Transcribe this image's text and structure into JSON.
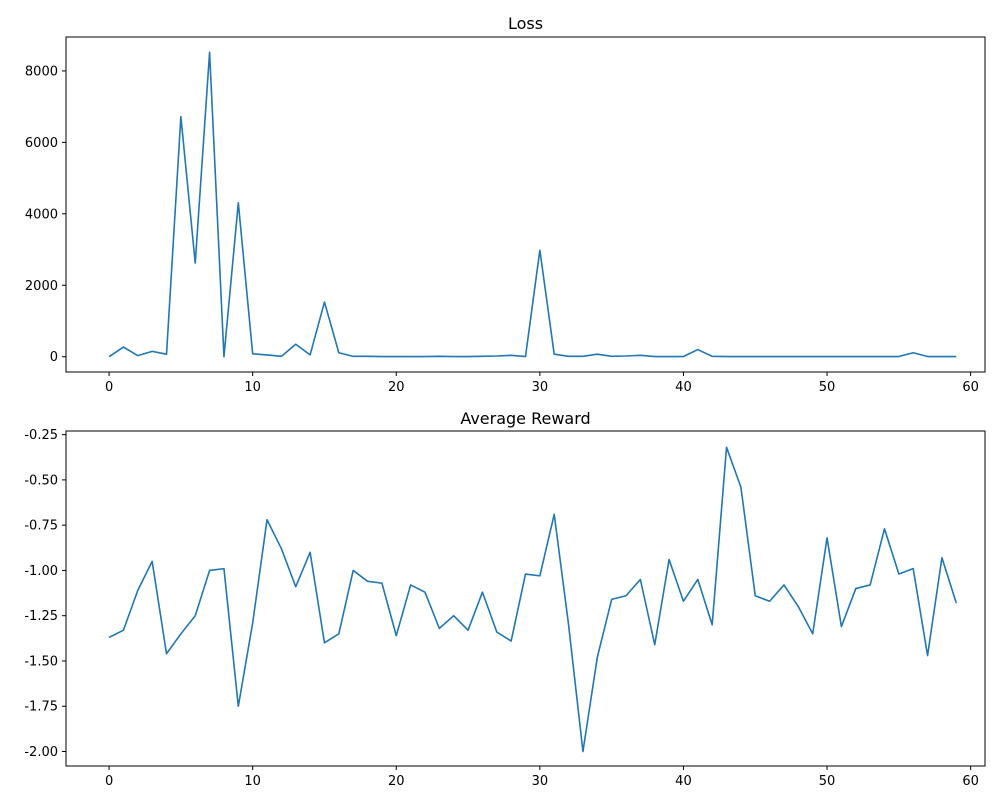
{
  "chart_data": [
    {
      "type": "line",
      "title": "Loss",
      "xlabel": "",
      "ylabel": "",
      "xlim": [
        -3,
        61
      ],
      "ylim": [
        -428,
        8950
      ],
      "xticks": [
        0,
        10,
        20,
        30,
        40,
        50,
        60
      ],
      "yticks": [
        0,
        2000,
        4000,
        6000,
        8000
      ],
      "grid": false,
      "color": "#1f77b4",
      "x": [
        0,
        1,
        2,
        3,
        4,
        5,
        6,
        7,
        8,
        9,
        10,
        11,
        12,
        13,
        14,
        15,
        16,
        17,
        18,
        19,
        20,
        21,
        22,
        23,
        24,
        25,
        26,
        27,
        28,
        29,
        30,
        31,
        32,
        33,
        34,
        35,
        36,
        37,
        38,
        39,
        40,
        41,
        42,
        43,
        44,
        45,
        46,
        47,
        48,
        49,
        50,
        51,
        52,
        53,
        54,
        55,
        56,
        57,
        58,
        59
      ],
      "y": [
        0,
        270,
        30,
        150,
        70,
        6720,
        2620,
        8520,
        0,
        4310,
        80,
        50,
        10,
        350,
        50,
        1530,
        110,
        10,
        10,
        5,
        5,
        5,
        5,
        10,
        5,
        5,
        10,
        20,
        40,
        5,
        2980,
        70,
        10,
        10,
        70,
        10,
        20,
        40,
        5,
        5,
        5,
        200,
        10,
        5,
        5,
        5,
        5,
        5,
        5,
        5,
        5,
        5,
        5,
        5,
        5,
        5,
        110,
        5,
        5,
        5
      ]
    },
    {
      "type": "line",
      "title": "Average Reward",
      "xlabel": "",
      "ylabel": "",
      "xlim": [
        -3,
        61
      ],
      "ylim": [
        -2.08,
        -0.23
      ],
      "xticks": [
        0,
        10,
        20,
        30,
        40,
        50,
        60
      ],
      "yticks": [
        -2.0,
        -1.75,
        -1.5,
        -1.25,
        -1.0,
        -0.75,
        -0.5,
        -0.25
      ],
      "grid": false,
      "color": "#1f77b4",
      "x": [
        0,
        1,
        2,
        3,
        4,
        5,
        6,
        7,
        8,
        9,
        10,
        11,
        12,
        13,
        14,
        15,
        16,
        17,
        18,
        19,
        20,
        21,
        22,
        23,
        24,
        25,
        26,
        27,
        28,
        29,
        30,
        31,
        32,
        33,
        34,
        35,
        36,
        37,
        38,
        39,
        40,
        41,
        42,
        43,
        44,
        45,
        46,
        47,
        48,
        49,
        50,
        51,
        52,
        53,
        54,
        55,
        56,
        57,
        58,
        59
      ],
      "y": [
        -1.37,
        -1.33,
        -1.11,
        -0.95,
        -1.46,
        -1.35,
        -1.25,
        -1.0,
        -0.99,
        -1.75,
        -1.29,
        -0.72,
        -0.88,
        -1.09,
        -0.9,
        -1.4,
        -1.35,
        -1.0,
        -1.06,
        -1.07,
        -1.36,
        -1.08,
        -1.12,
        -1.32,
        -1.25,
        -1.33,
        -1.12,
        -1.34,
        -1.39,
        -1.02,
        -1.03,
        -0.69,
        -1.3,
        -2.0,
        -1.48,
        -1.16,
        -1.14,
        -1.05,
        -1.41,
        -0.94,
        -1.17,
        -1.05,
        -1.3,
        -0.32,
        -0.54,
        -1.14,
        -1.17,
        -1.08,
        -1.2,
        -1.35,
        -0.82,
        -1.31,
        -1.1,
        -1.08,
        -0.77,
        -1.02,
        -0.99,
        -1.47,
        -0.93,
        -1.18
      ]
    }
  ]
}
